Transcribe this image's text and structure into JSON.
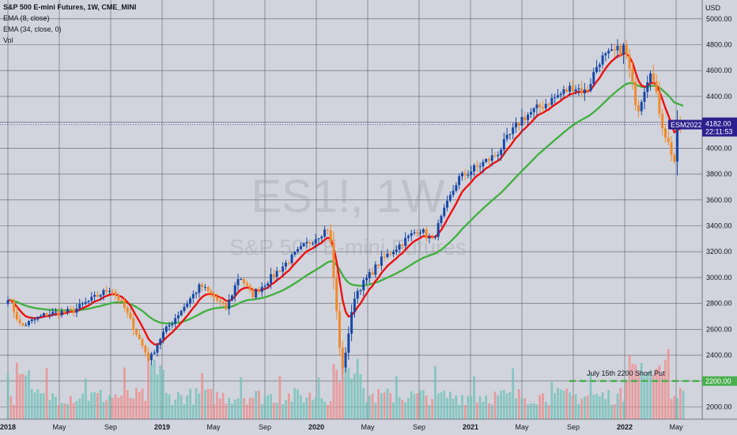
{
  "legend": {
    "title": "S&P 500 E-mini Futures, 1W, CME_MINI",
    "ema_fast": "EMA (8, close)",
    "ema_slow": "EMA (34, close, 0)",
    "volume": "Vol"
  },
  "watermark": {
    "symbol": "ES1!, 1W",
    "name": "S&P 500 E-mini Futures"
  },
  "currency": "USD",
  "price_tag": {
    "symbol": "ESM2022",
    "price": "4182.00",
    "countdown": "22:11:53"
  },
  "level_tag": {
    "price": "2200.00",
    "label": "July 15th 2200 Short Put"
  },
  "colors": {
    "up": "#1848a8",
    "down": "#f08a2c",
    "ema_fast": "#ee1111",
    "ema_slow": "#44b044",
    "vol_up": "#6ec1b8",
    "vol_down": "#ee8a8a",
    "grid": "#5d606b",
    "level": "#4caf50",
    "tag": "#2e1f8e"
  },
  "chart_data": {
    "type": "candlestick",
    "title": "S&P 500 E-mini Futures, 1W, CME_MINI",
    "y_axis": {
      "label": "USD",
      "ticks": [
        2000,
        2200,
        2400,
        2600,
        2800,
        3000,
        3200,
        3400,
        3600,
        3800,
        4000,
        4200,
        4400,
        4600,
        4800,
        5000
      ],
      "range": [
        1920,
        5080
      ]
    },
    "x_axis": {
      "ticks": [
        "2018",
        "May",
        "Sep",
        "2019",
        "May",
        "Sep",
        "2020",
        "May",
        "Sep",
        "2021",
        "May",
        "Sep",
        "2022",
        "May"
      ],
      "range": [
        "2018-01",
        "2022-05"
      ]
    },
    "price_path": [
      [
        "2018-01",
        2680
      ],
      [
        "2018-01",
        2850
      ],
      [
        "2018-02",
        2620
      ],
      [
        "2018-04",
        2720
      ],
      [
        "2018-06",
        2740
      ],
      [
        "2018-09",
        2920
      ],
      [
        "2018-10",
        2780
      ],
      [
        "2018-12",
        2360
      ],
      [
        "2019-01",
        2560
      ],
      [
        "2019-04",
        2940
      ],
      [
        "2019-06",
        2760
      ],
      [
        "2019-07",
        3020
      ],
      [
        "2019-08",
        2860
      ],
      [
        "2019-12",
        3240
      ],
      [
        "2020-02",
        3390
      ],
      [
        "2020-03",
        2260
      ],
      [
        "2020-04",
        2870
      ],
      [
        "2020-06",
        3130
      ],
      [
        "2020-09",
        3380
      ],
      [
        "2020-10",
        3280
      ],
      [
        "2020-12",
        3760
      ],
      [
        "2021-03",
        3950
      ],
      [
        "2021-05",
        4230
      ],
      [
        "2021-09",
        4480
      ],
      [
        "2021-10",
        4430
      ],
      [
        "2021-11",
        4680
      ],
      [
        "2022-01",
        4780
      ],
      [
        "2022-02",
        4290
      ],
      [
        "2022-03",
        4620
      ],
      [
        "2022-04",
        4150
      ],
      [
        "2022-05",
        3860
      ],
      [
        "2022-05",
        4182
      ]
    ],
    "last_price": 4182,
    "horizontal_level": {
      "value": 2200,
      "label": "July 15th 2200 Short Put"
    },
    "series": [
      {
        "name": "EMA (8, close)",
        "color": "#ee1111"
      },
      {
        "name": "EMA (34, close, 0)",
        "color": "#44b044"
      },
      {
        "name": "Vol"
      }
    ]
  }
}
